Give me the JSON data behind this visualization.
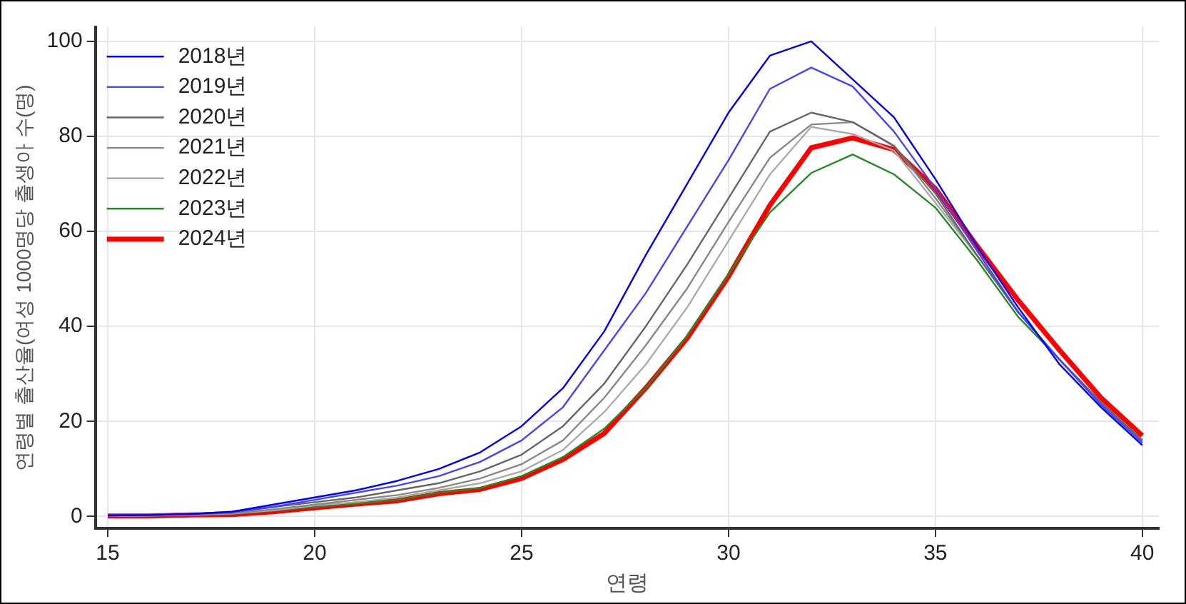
{
  "chart_data": {
    "type": "line",
    "xlabel": "연령",
    "ylabel": "연령별 출산율(여성 1000명당 출생아 수(명)",
    "x": [
      15,
      16,
      17,
      18,
      19,
      20,
      21,
      22,
      23,
      24,
      25,
      26,
      27,
      28,
      29,
      30,
      31,
      32,
      33,
      34,
      35,
      36,
      37,
      38,
      39,
      40
    ],
    "series": [
      {
        "name": "2018년",
        "color": "#0000ff",
        "values": [
          0.2,
          0.3,
          0.5,
          1,
          2.5,
          4,
          5.5,
          7.5,
          10,
          13.5,
          19,
          27,
          39,
          55,
          70,
          85,
          97,
          100,
          92,
          84,
          71,
          57,
          44,
          32,
          23,
          15
        ]
      },
      {
        "name": "2019년",
        "color": "#4444ff",
        "values": [
          0.2,
          0.3,
          0.5,
          1,
          2,
          3.5,
          5,
          6.5,
          8.5,
          11.5,
          16,
          23,
          35,
          47,
          61,
          75,
          90,
          94.5,
          90.5,
          81,
          69,
          56,
          43,
          33,
          23.5,
          15.5
        ]
      },
      {
        "name": "2020년",
        "color": "#666666",
        "values": [
          0.2,
          0.3,
          0.5,
          0.8,
          2,
          3,
          4,
          5.5,
          7,
          9.5,
          13,
          19,
          28,
          40,
          53,
          67,
          81,
          85,
          83,
          78,
          68,
          55,
          43,
          33,
          24,
          16
        ]
      },
      {
        "name": "2021년",
        "color": "#888888",
        "values": [
          0.1,
          0.2,
          0.4,
          0.7,
          1.5,
          2.5,
          3.5,
          4.5,
          6,
          8,
          11,
          16,
          25,
          36,
          48,
          62,
          75.5,
          82.5,
          83,
          78,
          67,
          55,
          43,
          33,
          24,
          16
        ]
      },
      {
        "name": "2022년",
        "color": "#aaaaaa",
        "values": [
          0.1,
          0.2,
          0.3,
          0.6,
          1.3,
          2.3,
          3,
          4,
          5.5,
          7,
          9.5,
          14,
          22,
          32,
          44,
          58,
          72,
          82,
          80.5,
          77,
          66,
          55,
          43,
          33,
          24,
          16
        ]
      },
      {
        "name": "2023년",
        "color": "#228b22",
        "values": [
          0.1,
          0.1,
          0.3,
          0.5,
          1.2,
          2,
          2.7,
          3.5,
          5,
          6,
          8.5,
          12.5,
          18.5,
          27,
          38,
          51,
          64,
          72.3,
          76.2,
          72,
          65,
          54,
          42,
          33,
          24,
          16
        ]
      },
      {
        "name": "2024년",
        "color": "#ff0000",
        "values": [
          0.1,
          0.1,
          0.3,
          0.4,
          1,
          1.8,
          2.6,
          3.3,
          4.8,
          5.7,
          8,
          12,
          17.5,
          27,
          37.5,
          50.5,
          65.5,
          77.6,
          79.7,
          77.2,
          69,
          57,
          45.5,
          35,
          25,
          17
        ]
      }
    ],
    "xlim": [
      14.7,
      40.4
    ],
    "xticks": [
      15,
      20,
      25,
      30,
      35,
      40
    ],
    "ylim": [
      -2.5,
      103
    ],
    "yticks": [
      0,
      20,
      40,
      60,
      80,
      100
    ],
    "grid": true,
    "legend": "top left",
    "marker": "none",
    "line_style": "solid"
  }
}
